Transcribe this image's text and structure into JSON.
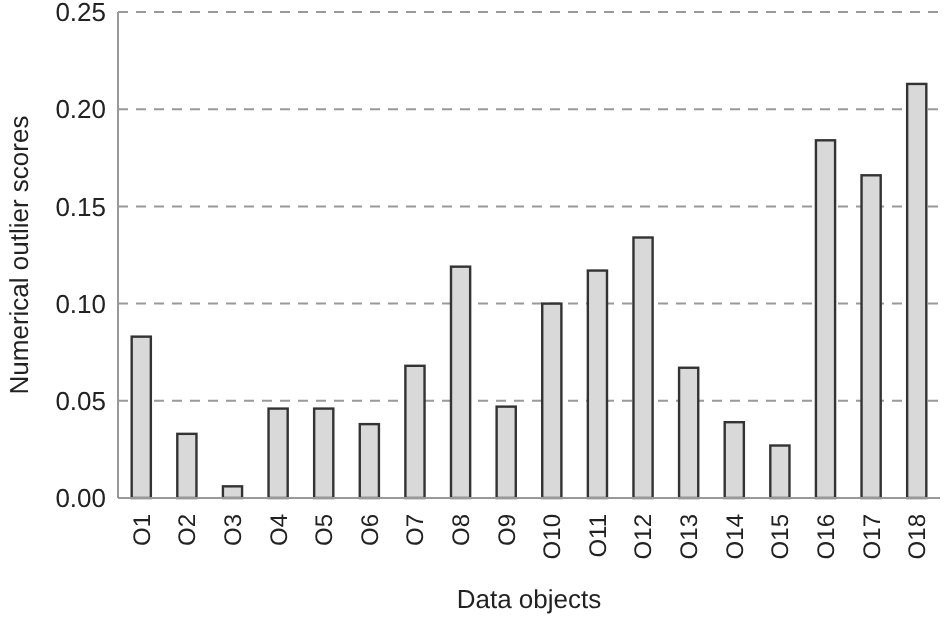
{
  "chart_data": {
    "type": "bar",
    "xlabel": "Data objects",
    "ylabel": "Numerical outlier scores",
    "categories": [
      "O1",
      "O2",
      "O3",
      "O4",
      "O5",
      "O6",
      "O7",
      "O8",
      "O9",
      "O10",
      "O11",
      "O12",
      "O13",
      "O14",
      "O15",
      "O16",
      "O17",
      "O18"
    ],
    "values": [
      0.083,
      0.033,
      0.006,
      0.046,
      0.046,
      0.038,
      0.068,
      0.119,
      0.047,
      0.1,
      0.117,
      0.134,
      0.067,
      0.039,
      0.027,
      0.184,
      0.166,
      0.213
    ],
    "color": "#d9d9d9",
    "ylim": [
      0,
      0.25
    ],
    "yticks": [
      {
        "value": 0,
        "label": "0.00"
      },
      {
        "value": 0.05,
        "label": "0.05"
      },
      {
        "value": 0.1,
        "label": "0.10"
      },
      {
        "value": 0.15,
        "label": "0.15"
      },
      {
        "value": 0.2,
        "label": "0.20"
      },
      {
        "value": 0.25,
        "label": "0.25"
      }
    ],
    "grid": "y"
  }
}
